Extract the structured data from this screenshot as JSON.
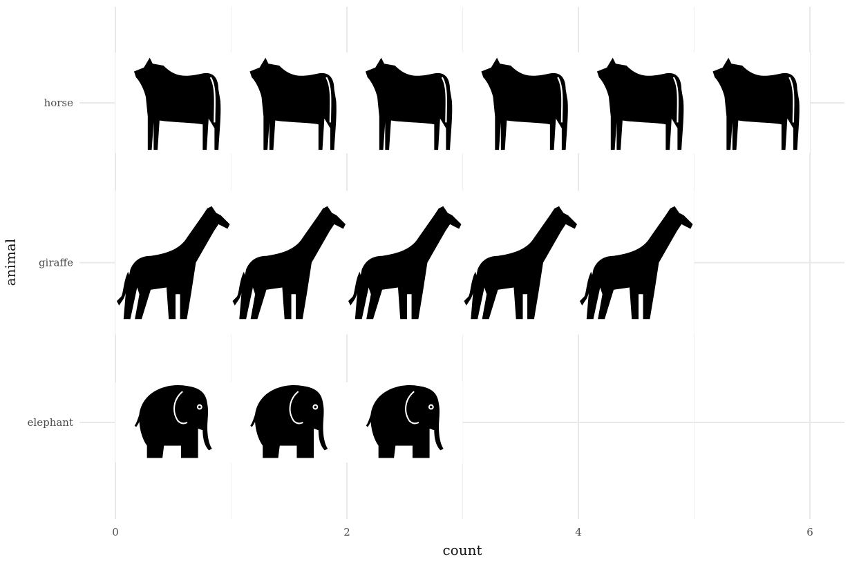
{
  "chart_data": {
    "type": "bar",
    "orientation": "horizontal",
    "style": "pictogram",
    "categories": [
      "elephant",
      "giraffe",
      "horse"
    ],
    "values": [
      3,
      5,
      6
    ],
    "icons": [
      "elephant-icon",
      "giraffe-icon",
      "horse-icon"
    ],
    "xlabel": "count",
    "ylabel": "animal",
    "xlim": [
      0,
      6
    ],
    "x_ticks": [
      0,
      2,
      4,
      6
    ],
    "grid": true,
    "colors": {
      "icon": "#000000",
      "grid": "#e6e6e6",
      "background": "#ffffff"
    }
  }
}
